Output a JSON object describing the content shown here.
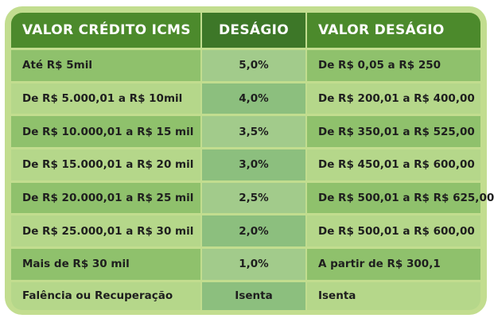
{
  "table": {
    "headers": [
      "VALOR CRÉDITO ICMS",
      "DESÁGIO",
      "VALOR DESÁGIO"
    ],
    "rows": [
      {
        "credito": "Até R$ 5mil",
        "desagio": "5,0%",
        "valor": "De R$ 0,05 a R$ 250"
      },
      {
        "credito": "De R$ 5.000,01 a R$ 10mil",
        "desagio": "4,0%",
        "valor": "De R$ 200,01 a R$ 400,00"
      },
      {
        "credito": "De R$ 10.000,01 a R$ 15 mil",
        "desagio": "3,5%",
        "valor": "De R$ 350,01 a R$ 525,00"
      },
      {
        "credito": "De R$ 15.000,01 a R$ 20 mil",
        "desagio": "3,0%",
        "valor": "De R$ 450,01 a R$ 600,00"
      },
      {
        "credito": "De R$ 20.000,01 a R$ 25 mil",
        "desagio": "2,5%",
        "valor": "De R$ 500,01 a R$ R$ 625,00"
      },
      {
        "credito": "De R$ 25.000,01 a R$ 30 mil",
        "desagio": "2,0%",
        "valor": "De R$ 500,01 a R$ 600,00"
      },
      {
        "credito": "Mais de R$ 30 mil",
        "desagio": "1,0%",
        "valor": "A partir de R$ 300,1"
      },
      {
        "credito": "Falência ou Recuperação",
        "desagio": "Isenta",
        "valor": "Isenta"
      }
    ]
  },
  "colors": {
    "frame": "#c2dd8f",
    "header": "#4c8a2c",
    "header_mid": "#3d7728",
    "row_dark": "#8fc16c",
    "row_light": "#b5d78a",
    "mid_column": "#93c47d"
  }
}
